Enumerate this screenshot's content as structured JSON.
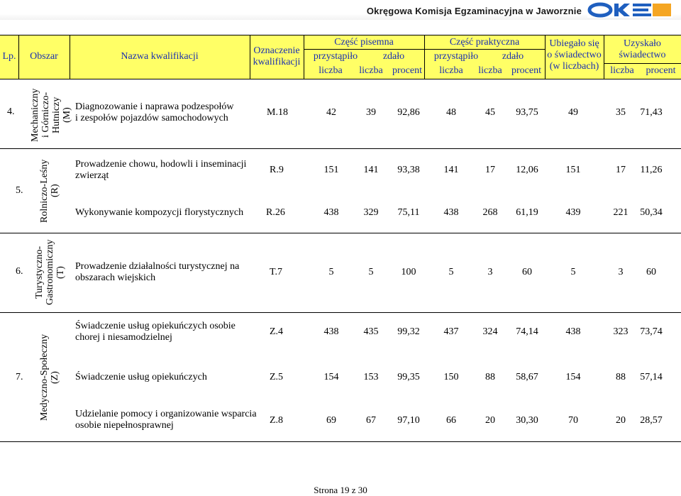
{
  "header_org": "Okręgowa Komisja Egzaminacyjna w Jaworznie",
  "logo_text": "OKE",
  "columns": {
    "lp": "Lp.",
    "obszar": "Obszar",
    "nazwa": "Nazwa kwalifikacji",
    "oznaczenie": [
      "Oznaczenie",
      "kwalifikacji"
    ],
    "czesc_pisemna": "Część pisemna",
    "czesc_praktyczna": "Część praktyczna",
    "przystapilo": "przystąpiło",
    "zdalo": "zdało",
    "ubiegalo": [
      "Ubiegało się",
      "o świadectwo",
      "(w liczbach)"
    ],
    "uzyskalo": [
      "Uzyskało",
      "świadectwo"
    ],
    "liczba": "liczba",
    "procent": "procent"
  },
  "groups": [
    {
      "lp": "4.",
      "obszar_lines": [
        "Mechaniczny",
        "i Górniczo-",
        "Hutniczy",
        "(M)"
      ],
      "rows": [
        {
          "name": [
            "Diagnozowanie i naprawa podzespołów",
            "i zespołów pojazdów samochodowych"
          ],
          "code": "M.18",
          "p_przyst": "42",
          "p_zdalo": "39",
          "p_proc": "92,86",
          "pr_przyst": "48",
          "pr_zdalo": "45",
          "pr_proc": "93,75",
          "ubiegalo": "49",
          "uz_liczba": "35",
          "uz_proc": "71,43"
        }
      ]
    },
    {
      "lp": "5.",
      "obszar_lines": [
        "Rolniczo-Leśny",
        "(R)"
      ],
      "rows": [
        {
          "name": [
            "Prowadzenie chowu, hodowli i inseminacji",
            "zwierząt"
          ],
          "code": "R.9",
          "p_przyst": "151",
          "p_zdalo": "141",
          "p_proc": "93,38",
          "pr_przyst": "141",
          "pr_zdalo": "17",
          "pr_proc": "12,06",
          "ubiegalo": "151",
          "uz_liczba": "17",
          "uz_proc": "11,26"
        },
        {
          "name": [
            "Wykonywanie kompozycji florystycznych"
          ],
          "code": "R.26",
          "p_przyst": "438",
          "p_zdalo": "329",
          "p_proc": "75,11",
          "pr_przyst": "438",
          "pr_zdalo": "268",
          "pr_proc": "61,19",
          "ubiegalo": "439",
          "uz_liczba": "221",
          "uz_proc": "50,34"
        }
      ]
    },
    {
      "lp": "6.",
      "obszar_lines": [
        "Turystyczno-",
        "Gastronomiczny",
        "(T)"
      ],
      "rows": [
        {
          "name": [
            "Prowadzenie działalności turystycznej na",
            "obszarach wiejskich"
          ],
          "code": "T.7",
          "p_przyst": "5",
          "p_zdalo": "5",
          "p_proc": "100",
          "pr_przyst": "5",
          "pr_zdalo": "3",
          "pr_proc": "60",
          "ubiegalo": "5",
          "uz_liczba": "3",
          "uz_proc": "60"
        }
      ]
    },
    {
      "lp": "7.",
      "obszar_lines": [
        "Medyczno-Społeczny",
        "(Z)"
      ],
      "rows": [
        {
          "name": [
            "Świadczenie usług opiekuńczych osobie",
            "chorej i niesamodzielnej"
          ],
          "code": "Z.4",
          "p_przyst": "438",
          "p_zdalo": "435",
          "p_proc": "99,32",
          "pr_przyst": "437",
          "pr_zdalo": "324",
          "pr_proc": "74,14",
          "ubiegalo": "438",
          "uz_liczba": "323",
          "uz_proc": "73,74"
        },
        {
          "name": [
            "Świadczenie usług opiekuńczych"
          ],
          "code": "Z.5",
          "p_przyst": "154",
          "p_zdalo": "153",
          "p_proc": "99,35",
          "pr_przyst": "150",
          "pr_zdalo": "88",
          "pr_proc": "58,67",
          "ubiegalo": "154",
          "uz_liczba": "88",
          "uz_proc": "57,14"
        },
        {
          "name": [
            "Udzielanie pomocy i organizowanie wsparcia",
            "osobie niepełnosprawnej"
          ],
          "code": "Z.8",
          "p_przyst": "69",
          "p_zdalo": "67",
          "p_proc": "97,10",
          "pr_przyst": "66",
          "pr_zdalo": "20",
          "pr_proc": "30,30",
          "ubiegalo": "70",
          "uz_liczba": "20",
          "uz_proc": "28,57"
        }
      ]
    }
  ],
  "footer": "Strona 19 z 30"
}
